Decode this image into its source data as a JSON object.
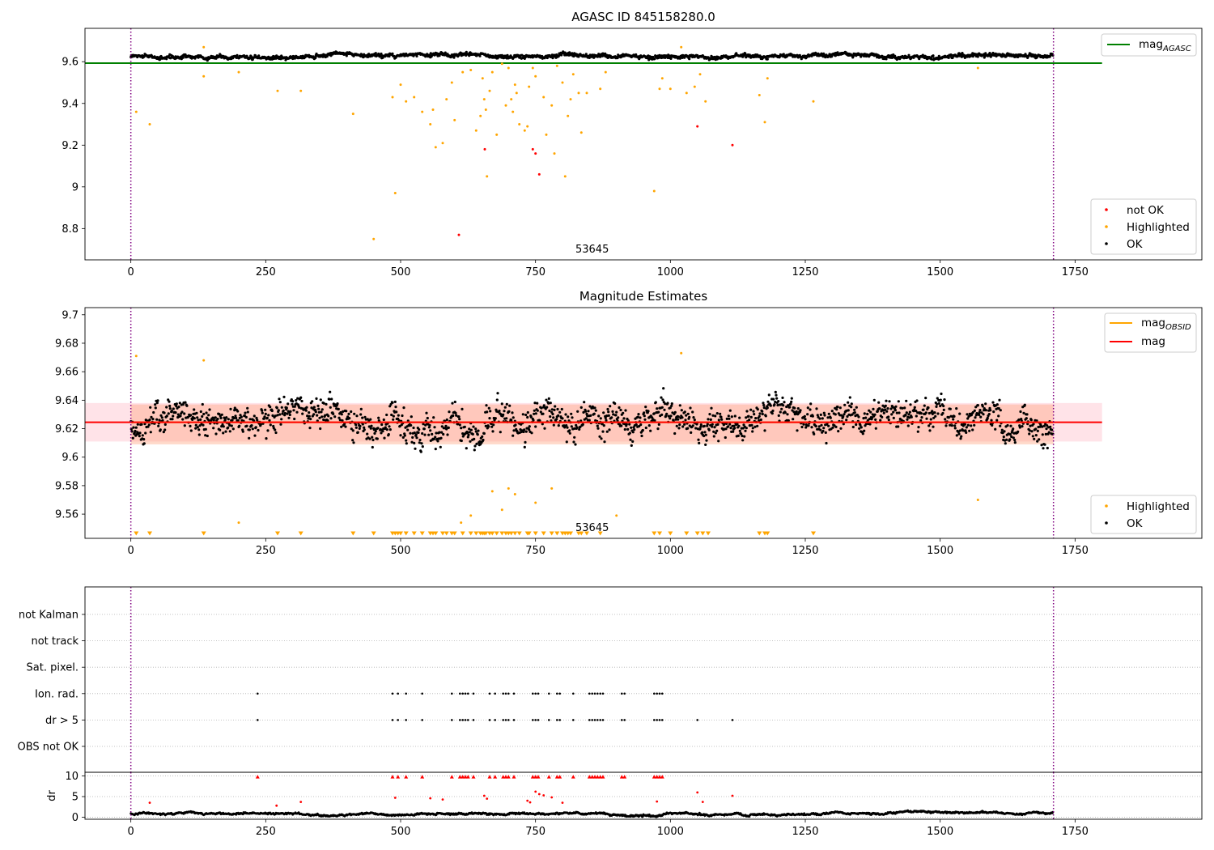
{
  "chart_data": [
    {
      "type": "scatter",
      "title": "AGASC ID 845158280.0",
      "xlim": [
        -85,
        1985
      ],
      "ylim": [
        8.65,
        9.76
      ],
      "xticks": [
        0,
        250,
        500,
        750,
        1000,
        1250,
        1500,
        1750
      ],
      "yticks": [
        8.8,
        9.0,
        9.2,
        9.4,
        9.6
      ],
      "grid": false,
      "vlines": [
        0,
        1710
      ],
      "annotation": {
        "x": 855,
        "text": "53645"
      },
      "hline": {
        "name": "mag",
        "subscript": "AGASC",
        "y": 9.593,
        "x_range": [
          -85,
          1800
        ],
        "color": "#008000"
      },
      "legend_lines": [
        {
          "name": "mag",
          "subscript": "AGASC",
          "color": "#008000"
        }
      ],
      "legend_points": [
        {
          "name": "not OK",
          "color": "#ff0000"
        },
        {
          "name": "Highlighted",
          "color": "#ffa500"
        },
        {
          "name": "OK",
          "color": "#000000"
        }
      ],
      "legend_placement": [
        "top-right",
        "bottom-right"
      ],
      "series": [
        {
          "name": "OK",
          "color": "#000000",
          "gen": {
            "n": 1710,
            "mean": 9.625,
            "amp": 0.012,
            "noise": 0.008,
            "seed": 7
          }
        },
        {
          "name": "Highlighted",
          "color": "#ffa500",
          "points": [
            [
              10,
              9.36
            ],
            [
              35,
              9.3
            ],
            [
              135,
              9.53
            ],
            [
              135,
              9.67
            ],
            [
              200,
              9.55
            ],
            [
              272,
              9.46
            ],
            [
              315,
              9.46
            ],
            [
              412,
              9.35
            ],
            [
              450,
              8.75
            ],
            [
              485,
              9.43
            ],
            [
              490,
              8.97
            ],
            [
              500,
              9.49
            ],
            [
              510,
              9.41
            ],
            [
              525,
              9.43
            ],
            [
              540,
              9.36
            ],
            [
              555,
              9.3
            ],
            [
              560,
              9.37
            ],
            [
              565,
              9.19
            ],
            [
              578,
              9.21
            ],
            [
              585,
              9.42
            ],
            [
              595,
              9.5
            ],
            [
              600,
              9.32
            ],
            [
              615,
              9.55
            ],
            [
              630,
              9.56
            ],
            [
              640,
              9.27
            ],
            [
              648,
              9.34
            ],
            [
              652,
              9.52
            ],
            [
              655,
              9.42
            ],
            [
              658,
              9.37
            ],
            [
              660,
              9.05
            ],
            [
              665,
              9.46
            ],
            [
              670,
              9.55
            ],
            [
              678,
              9.25
            ],
            [
              688,
              9.59
            ],
            [
              695,
              9.39
            ],
            [
              700,
              9.57
            ],
            [
              705,
              9.42
            ],
            [
              708,
              9.36
            ],
            [
              712,
              9.49
            ],
            [
              715,
              9.45
            ],
            [
              720,
              9.3
            ],
            [
              730,
              9.27
            ],
            [
              735,
              9.29
            ],
            [
              738,
              9.48
            ],
            [
              745,
              9.57
            ],
            [
              750,
              9.53
            ],
            [
              765,
              9.43
            ],
            [
              770,
              9.25
            ],
            [
              780,
              9.39
            ],
            [
              785,
              9.16
            ],
            [
              790,
              9.58
            ],
            [
              800,
              9.5
            ],
            [
              805,
              9.05
            ],
            [
              810,
              9.34
            ],
            [
              815,
              9.42
            ],
            [
              820,
              9.54
            ],
            [
              830,
              9.45
            ],
            [
              835,
              9.26
            ],
            [
              845,
              9.45
            ],
            [
              870,
              9.47
            ],
            [
              880,
              9.55
            ],
            [
              970,
              8.98
            ],
            [
              980,
              9.47
            ],
            [
              985,
              9.52
            ],
            [
              1000,
              9.47
            ],
            [
              1020,
              9.67
            ],
            [
              1030,
              9.45
            ],
            [
              1045,
              9.48
            ],
            [
              1055,
              9.54
            ],
            [
              1065,
              9.41
            ],
            [
              1165,
              9.44
            ],
            [
              1175,
              9.31
            ],
            [
              1180,
              9.52
            ],
            [
              1265,
              9.41
            ],
            [
              1570,
              9.57
            ]
          ]
        },
        {
          "name": "not OK",
          "color": "#ff0000",
          "points": [
            [
              608,
              8.77
            ],
            [
              656,
              9.18
            ],
            [
              745,
              9.18
            ],
            [
              750,
              9.16
            ],
            [
              757,
              9.06
            ],
            [
              1050,
              9.29
            ],
            [
              1115,
              9.2
            ]
          ]
        }
      ]
    },
    {
      "type": "scatter",
      "title": "Magnitude Estimates",
      "xlim": [
        -85,
        1985
      ],
      "ylim": [
        9.543,
        9.705
      ],
      "xticks": [
        0,
        250,
        500,
        750,
        1000,
        1250,
        1500,
        1750
      ],
      "yticks": [
        9.56,
        9.58,
        9.6,
        9.62,
        9.64,
        9.66,
        9.68,
        9.7
      ],
      "grid": false,
      "vlines": [
        0,
        1710
      ],
      "annotation": {
        "x": 855,
        "text": "53645"
      },
      "bands": [
        {
          "y": [
            9.611,
            9.638
          ],
          "x_range": [
            -85,
            1800
          ],
          "color": "#ffc0cb",
          "opacity": 0.45
        },
        {
          "y": [
            9.609,
            9.637
          ],
          "x_range": [
            0,
            1710
          ],
          "color": "#ffa07a",
          "opacity": 0.4
        }
      ],
      "lines": [
        {
          "name": "mag",
          "subscript": "OBSID",
          "y": 9.6245,
          "x_range": [
            0,
            1710
          ],
          "color": "#ffa500"
        },
        {
          "name": "mag",
          "y": 9.6245,
          "x_range": [
            -85,
            1800
          ],
          "color": "#ff0000"
        }
      ],
      "legend_lines": [
        {
          "name": "mag",
          "subscript": "OBSID",
          "color": "#ffa500"
        },
        {
          "name": "mag",
          "color": "#ff0000"
        }
      ],
      "legend_points": [
        {
          "name": "Highlighted",
          "color": "#ffa500"
        },
        {
          "name": "OK",
          "color": "#000000"
        }
      ],
      "legend_placement": [
        "top-right",
        "bottom-right"
      ],
      "series": [
        {
          "name": "OK",
          "color": "#000000",
          "gen": {
            "n": 1710,
            "mean": 9.625,
            "amp": 0.012,
            "noise": 0.009,
            "seed": 11
          }
        },
        {
          "name": "Highlighted",
          "color": "#ffa500",
          "points": [
            [
              10,
              9.671
            ],
            [
              135,
              9.668
            ],
            [
              200,
              9.554
            ],
            [
              612,
              9.554
            ],
            [
              630,
              9.559
            ],
            [
              670,
              9.576
            ],
            [
              688,
              9.563
            ],
            [
              700,
              9.578
            ],
            [
              712,
              9.574
            ],
            [
              750,
              9.568
            ],
            [
              780,
              9.578
            ],
            [
              900,
              9.559
            ],
            [
              1020,
              9.673
            ],
            [
              1570,
              9.57
            ]
          ]
        },
        {
          "name": "Highlighted-low",
          "color": "#ffa500",
          "marker": "triangle-down",
          "y": 9.545,
          "x": [
            10,
            35,
            135,
            272,
            315,
            412,
            450,
            485,
            490,
            495,
            500,
            510,
            525,
            540,
            555,
            560,
            565,
            578,
            585,
            595,
            600,
            615,
            630,
            640,
            648,
            652,
            655,
            658,
            665,
            670,
            678,
            688,
            695,
            700,
            705,
            712,
            720,
            735,
            738,
            750,
            765,
            780,
            790,
            800,
            805,
            810,
            815,
            830,
            835,
            845,
            870,
            970,
            980,
            1000,
            1030,
            1050,
            1060,
            1070,
            1165,
            1175,
            1180,
            1265
          ]
        }
      ]
    },
    {
      "type": "scatter",
      "title": "",
      "xlim": [
        -85,
        1985
      ],
      "categories": [
        "not Kalman",
        "not track",
        "Sat. pixel.",
        "Ion. rad.",
        "dr > 5",
        "OBS not OK"
      ],
      "grid": true,
      "vlines": [
        0,
        1710
      ],
      "flags": [
        {
          "category": "Ion. rad.",
          "x": [
            235,
            485,
            495,
            510,
            540,
            595,
            610,
            615,
            620,
            625,
            635,
            665,
            675,
            690,
            695,
            700,
            710,
            745,
            750,
            755,
            775,
            790,
            795,
            820,
            850,
            855,
            860,
            865,
            870,
            875,
            910,
            915,
            970,
            975,
            980,
            985
          ]
        },
        {
          "category": "dr > 5",
          "x": [
            235,
            485,
            495,
            510,
            540,
            595,
            610,
            615,
            620,
            625,
            635,
            665,
            675,
            690,
            695,
            700,
            710,
            745,
            750,
            755,
            775,
            790,
            795,
            820,
            850,
            855,
            860,
            865,
            870,
            875,
            910,
            915,
            970,
            975,
            980,
            985,
            1050,
            1115
          ]
        }
      ]
    },
    {
      "type": "scatter",
      "title": "",
      "ylabel": "dr",
      "xlim": [
        -85,
        1985
      ],
      "ylim": [
        -0.5,
        10.9
      ],
      "xticks": [
        0,
        250,
        500,
        750,
        1000,
        1250,
        1500,
        1750
      ],
      "yticks": [
        0,
        5,
        10
      ],
      "grid": true,
      "vlines": [
        0,
        1710
      ],
      "series": [
        {
          "name": "OK",
          "color": "#000000",
          "gen": {
            "n": 1710,
            "mean": 0.85,
            "amp": 0.45,
            "noise": 0.18,
            "seed": 23
          }
        },
        {
          "name": "not OK",
          "color": "#ff0000",
          "capped_y": 9.8,
          "capped_x": [
            235,
            485,
            495,
            510,
            540,
            595,
            610,
            615,
            620,
            625,
            635,
            665,
            675,
            690,
            695,
            700,
            710,
            745,
            750,
            755,
            775,
            790,
            795,
            820,
            850,
            855,
            860,
            865,
            870,
            875,
            910,
            915,
            970,
            975,
            980,
            985
          ],
          "points": [
            [
              35,
              3.5
            ],
            [
              490,
              4.7
            ],
            [
              555,
              4.6
            ],
            [
              578,
              4.3
            ],
            [
              655,
              5.2
            ],
            [
              660,
              4.5
            ],
            [
              735,
              4.0
            ],
            [
              740,
              3.6
            ],
            [
              750,
              6.2
            ],
            [
              757,
              5.6
            ],
            [
              765,
              5.3
            ],
            [
              780,
              4.8
            ],
            [
              800,
              3.5
            ],
            [
              975,
              3.8
            ],
            [
              1050,
              6.0
            ],
            [
              1060,
              3.7
            ],
            [
              1115,
              5.2
            ],
            [
              270,
              2.8
            ],
            [
              315,
              3.7
            ]
          ]
        }
      ]
    }
  ]
}
